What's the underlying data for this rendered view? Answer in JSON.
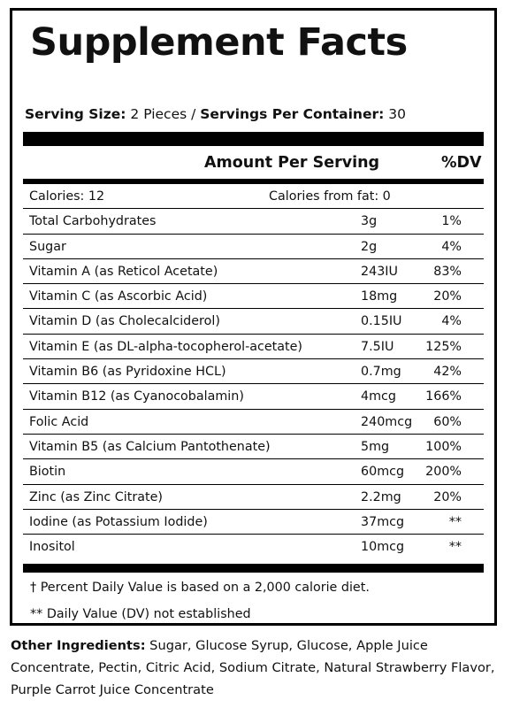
{
  "title": "Supplement Facts",
  "serving": {
    "size_label": "Serving Size:",
    "size_value": " 2 Pieces / ",
    "per_container_label": "Servings Per Container:",
    "per_container_value": " 30"
  },
  "headers": {
    "amount": "Amount Per Serving",
    "dv": "%DV"
  },
  "calories": {
    "label": "Calories: 12",
    "from_fat": "Calories from fat: 0"
  },
  "nutrients": [
    {
      "name": "Total Carbohydrates",
      "amount": "3g",
      "dv": "1%"
    },
    {
      "name": "Sugar",
      "amount": "2g",
      "dv": "4%"
    },
    {
      "name": "Vitamin A (as Reticol Acetate)",
      "amount": "243IU",
      "dv": "83%"
    },
    {
      "name": "Vitamin C (as Ascorbic Acid)",
      "amount": "18mg",
      "dv": "20%"
    },
    {
      "name": "Vitamin D (as Cholecalciderol)",
      "amount": "0.15IU",
      "dv": "4%"
    },
    {
      "name": "Vitamin E (as DL-alpha-tocopherol-acetate)",
      "amount": "7.5IU",
      "dv": "125%"
    },
    {
      "name": "Vitamin B6 (as Pyridoxine HCL)",
      "amount": "0.7mg",
      "dv": "42%"
    },
    {
      "name": "Vitamin B12 (as Cyanocobalamin)",
      "amount": "4mcg",
      "dv": "166%"
    },
    {
      "name": "Folic Acid",
      "amount": "240mcg",
      "dv": "60%"
    },
    {
      "name": "Vitamin B5 (as Calcium Pantothenate)",
      "amount": "5mg",
      "dv": "100%"
    },
    {
      "name": "Biotin",
      "amount": "60mcg",
      "dv": "200%"
    },
    {
      "name": "Zinc (as Zinc Citrate)",
      "amount": "2.2mg",
      "dv": "20%"
    },
    {
      "name": "Iodine (as Potassium Iodide)",
      "amount": "37mcg",
      "dv": "**"
    },
    {
      "name": "Inositol",
      "amount": "10mcg",
      "dv": "**"
    }
  ],
  "footnotes": {
    "dagger": "†  Percent Daily Value is based on a 2,000 calorie diet.",
    "double_star": "** Daily Value (DV) not established"
  },
  "other_ingredients": {
    "label": "Other Ingredients:",
    "text": " Sugar, Glucose Syrup, Glucose, Apple Juice Concentrate, Pectin, Citric Acid, Sodium Citrate, Natural Strawberry Flavor, Purple Carrot Juice Concentrate"
  }
}
